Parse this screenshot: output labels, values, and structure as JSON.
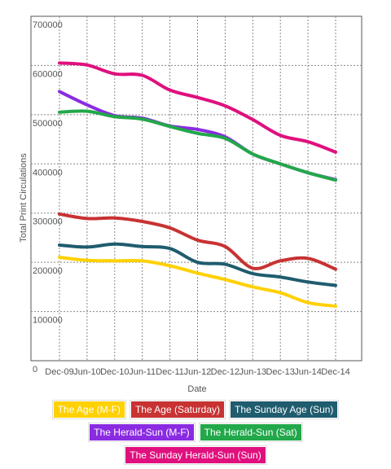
{
  "chart_data": {
    "type": "line",
    "xlabel": "Date",
    "ylabel": "Total Print Circulations",
    "ylim": [
      0,
      700000
    ],
    "yticks": [
      "0",
      "100000",
      "200000",
      "300000",
      "400000",
      "500000",
      "600000",
      "700000"
    ],
    "yticks_values": [
      0,
      100000,
      200000,
      300000,
      400000,
      500000,
      600000,
      700000
    ],
    "categories": [
      "Dec-09",
      "Jun-10",
      "Dec-10",
      "Jun-11",
      "Dec-11",
      "Jun-12",
      "Dec-12",
      "Jun-13",
      "Dec-13",
      "Jun-14",
      "Dec-14"
    ],
    "grid": true,
    "legend_position": "bottom",
    "series": [
      {
        "name": "The Age (M-F)",
        "color": "#FFD100",
        "values": [
          210000,
          204000,
          203000,
          203000,
          193000,
          178000,
          165000,
          150000,
          138000,
          118000,
          111000
        ]
      },
      {
        "name": "The Age (Saturday)",
        "color": "#C83232",
        "values": [
          298000,
          289000,
          290000,
          283000,
          270000,
          245000,
          232000,
          188000,
          203000,
          208000,
          186000
        ]
      },
      {
        "name": "The Sunday Age (Sun)",
        "color": "#1F5C6E",
        "values": [
          235000,
          231000,
          237000,
          232000,
          228000,
          200000,
          196000,
          177000,
          170000,
          160000,
          153000
        ]
      },
      {
        "name": "The Herald-Sun (M-F)",
        "color": "#8A2BE2",
        "values": [
          547000,
          520000,
          498000,
          493000,
          477000,
          470000,
          455000,
          420000,
          400000,
          382000,
          368000
        ]
      },
      {
        "name": "The Herald-Sun (Sat)",
        "color": "#22A84A",
        "values": [
          505000,
          507000,
          496000,
          491000,
          476000,
          462000,
          452000,
          420000,
          400000,
          382000,
          367000
        ]
      },
      {
        "name": "The Sunday Herald-Sun (Sun)",
        "color": "#E0107E",
        "values": [
          605000,
          601000,
          583000,
          580000,
          550000,
          535000,
          518000,
          490000,
          458000,
          445000,
          424000
        ]
      }
    ]
  }
}
